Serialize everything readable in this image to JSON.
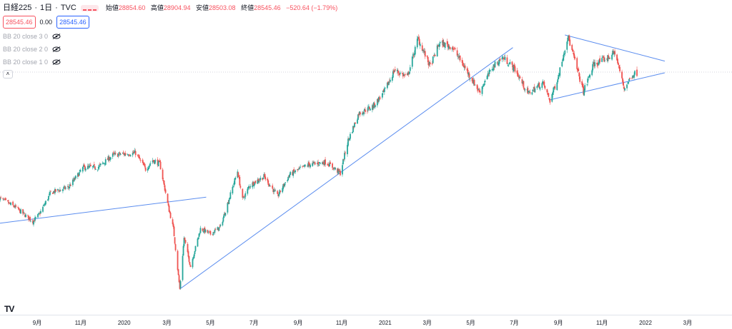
{
  "header": {
    "symbol": "日経225",
    "interval": "1日",
    "source": "TVC",
    "open_label": "始値",
    "open_value": "28854.60",
    "high_label": "高値",
    "high_value": "28904.94",
    "low_label": "安値",
    "low_value": "28503.08",
    "close_label": "終値",
    "close_value": "28545.46",
    "change_value": "−520.64 (−1.79%)",
    "bid_price": "28545.46",
    "spread": "0.00",
    "ask_price": "28545.46"
  },
  "indicators": [
    {
      "label": "BB 20 close 3 0"
    },
    {
      "label": "BB 20 close 2 0"
    },
    {
      "label": "BB 20 close 1 0"
    }
  ],
  "logo_text": "TV",
  "colors": {
    "up": "#26a69a",
    "down": "#ef5350",
    "trendline": "#5b8def",
    "text": "#131722"
  },
  "chart_data": {
    "type": "candlestick",
    "x_tick_labels": [
      "9月",
      "11月",
      "2020",
      "3月",
      "5月",
      "7月",
      "9月",
      "11月",
      "2021",
      "3月",
      "5月",
      "7月",
      "9月",
      "11月",
      "2022",
      "3月"
    ],
    "x_tick_dates": [
      "2019-09-01",
      "2019-11-01",
      "2020-01-01",
      "2020-03-01",
      "2020-05-01",
      "2020-07-01",
      "2020-09-01",
      "2020-11-01",
      "2021-01-01",
      "2021-03-01",
      "2021-05-01",
      "2021-07-01",
      "2021-09-01",
      "2021-11-01",
      "2022-01-01",
      "2022-03-01"
    ],
    "ylim": [
      15600,
      31600
    ],
    "last_close": 28545.46,
    "close_anchors": [
      [
        "2019-07-10",
        21600
      ],
      [
        "2019-08-01",
        21100
      ],
      [
        "2019-08-26",
        20300
      ],
      [
        "2019-09-04",
        20700
      ],
      [
        "2019-09-20",
        21900
      ],
      [
        "2019-10-15",
        22200
      ],
      [
        "2019-11-05",
        23300
      ],
      [
        "2019-11-25",
        23300
      ],
      [
        "2019-12-17",
        24000
      ],
      [
        "2020-01-17",
        24100
      ],
      [
        "2020-01-31",
        23200
      ],
      [
        "2020-02-10",
        23700
      ],
      [
        "2020-02-20",
        23500
      ],
      [
        "2020-03-03",
        21100
      ],
      [
        "2020-03-10",
        19900
      ],
      [
        "2020-03-19",
        16550
      ],
      [
        "2020-03-25",
        19400
      ],
      [
        "2020-04-03",
        17800
      ],
      [
        "2020-04-17",
        19900
      ],
      [
        "2020-05-01",
        19600
      ],
      [
        "2020-05-15",
        20000
      ],
      [
        "2020-06-08",
        23100
      ],
      [
        "2020-06-15",
        21500
      ],
      [
        "2020-06-25",
        22300
      ],
      [
        "2020-07-15",
        22800
      ],
      [
        "2020-08-03",
        21700
      ],
      [
        "2020-08-20",
        22900
      ],
      [
        "2020-09-15",
        23450
      ],
      [
        "2020-10-10",
        23600
      ],
      [
        "2020-10-30",
        22980
      ],
      [
        "2020-11-10",
        24800
      ],
      [
        "2020-11-25",
        26300
      ],
      [
        "2020-12-15",
        26700
      ],
      [
        "2020-12-30",
        27450
      ],
      [
        "2021-01-14",
        28700
      ],
      [
        "2021-02-01",
        28300
      ],
      [
        "2021-02-16",
        30450
      ],
      [
        "2021-03-05",
        28900
      ],
      [
        "2021-03-18",
        30200
      ],
      [
        "2021-04-05",
        30000
      ],
      [
        "2021-04-20",
        29000
      ],
      [
        "2021-05-13",
        27500
      ],
      [
        "2021-06-01",
        28900
      ],
      [
        "2021-06-15",
        29400
      ],
      [
        "2021-07-01",
        28800
      ],
      [
        "2021-07-20",
        27400
      ],
      [
        "2021-08-10",
        28000
      ],
      [
        "2021-08-20",
        27000
      ],
      [
        "2021-09-01",
        28400
      ],
      [
        "2021-09-14",
        30600
      ],
      [
        "2021-10-06",
        27500
      ],
      [
        "2021-10-20",
        29000
      ],
      [
        "2021-11-10",
        29400
      ],
      [
        "2021-11-19",
        29700
      ],
      [
        "2021-12-02",
        27700
      ],
      [
        "2021-12-15",
        28500
      ],
      [
        "2021-12-20",
        28545.46
      ]
    ],
    "trendlines": [
      {
        "from": [
          "2019-06-20",
          20100
        ],
        "to": [
          "2020-04-25",
          21650
        ]
      },
      {
        "from": [
          "2020-03-19",
          16550
        ],
        "to": [
          "2021-06-29",
          29950
        ]
      },
      {
        "from": [
          "2021-09-10",
          30650
        ],
        "to": [
          "2022-01-28",
          29200
        ]
      },
      {
        "from": [
          "2021-08-20",
          27050
        ],
        "to": [
          "2022-01-28",
          28550
        ]
      }
    ]
  }
}
